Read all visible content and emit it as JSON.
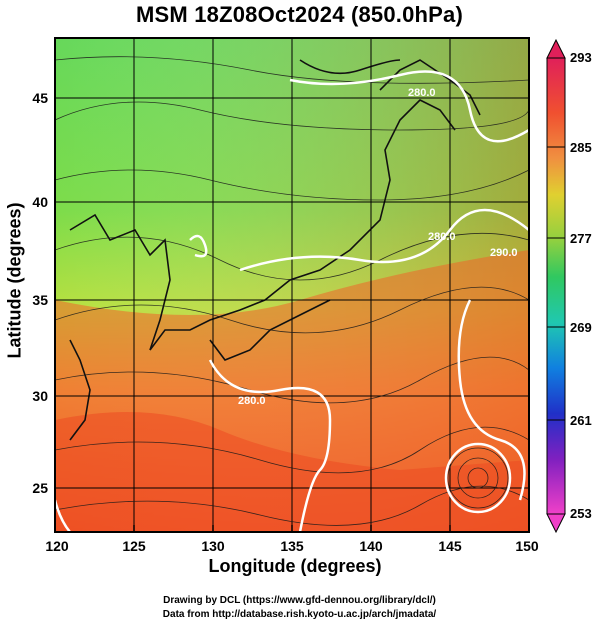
{
  "title": "MSM 18Z08Oct2024 (850.0hPa)",
  "x_axis": {
    "label": "Longitude (degrees)",
    "ticks": [
      "120",
      "125",
      "130",
      "135",
      "140",
      "145",
      "150"
    ]
  },
  "y_axis": {
    "label": "Latitude  (degrees)",
    "ticks": [
      "25",
      "30",
      "35",
      "40",
      "45"
    ]
  },
  "colorbar": {
    "ticks": [
      "293",
      "285",
      "277",
      "269",
      "261",
      "253"
    ],
    "colors": [
      "#e0205a",
      "#f05030",
      "#f09040",
      "#e0d030",
      "#90d040",
      "#30c860",
      "#20c8b0",
      "#1080e0",
      "#2030c8",
      "#8020c0",
      "#d030c0",
      "#f040c8"
    ]
  },
  "contours": {
    "labels": [
      "280.0",
      "280.0",
      "280.0",
      "290.0"
    ]
  },
  "credits": {
    "line1": "Drawing by DCL (https://www.gfd-dennou.org/library/dcl/)",
    "line2": "Data from http://database.rish.kyoto-u.ac.jp/arch/jmadata/"
  }
}
